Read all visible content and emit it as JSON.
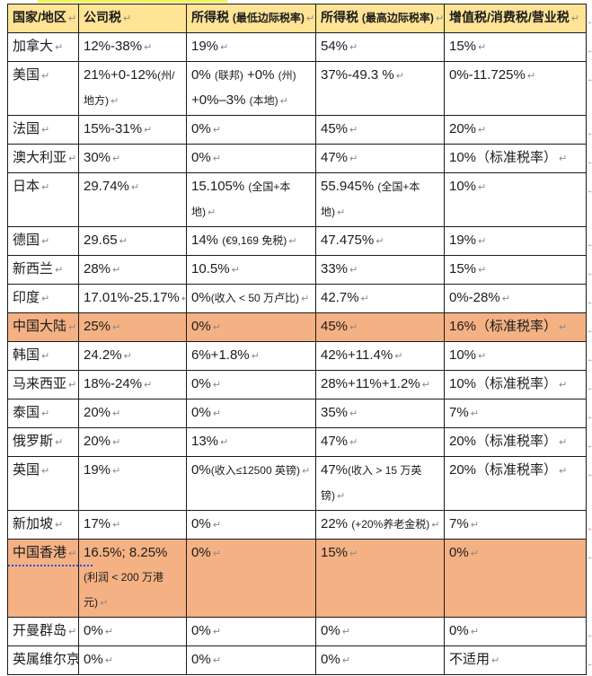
{
  "document": {
    "colors": {
      "header_bg": "#FFE496",
      "highlight_bg": "#F4B183",
      "border_color": "#1b1b1b",
      "mark_color": "#8a8a8a",
      "top_highlight": "#F5F456",
      "squiggle_blue": "#2b50d8"
    },
    "marks": {
      "cell_end": "↵",
      "row_end": "←"
    }
  },
  "table": {
    "headers": [
      "国家/地区",
      "公司税",
      "所得税 (最低边际税率)",
      "所得税 (最高边际税率)",
      "增值税/消费税/营业税"
    ],
    "rows": [
      {
        "highlight": false,
        "cells": [
          "加拿大",
          "12%-38%",
          "19%",
          "54%",
          "15%"
        ]
      },
      {
        "highlight": false,
        "cells": [
          "美国",
          "21%+0-12%(州/地方)",
          "0% (联邦) +0% (州) +0%–3% (本地)",
          "37%-49.3 %",
          "0%-11.725%"
        ]
      },
      {
        "highlight": false,
        "cells": [
          "法国",
          "15%-31%",
          "0%",
          "45%",
          "20%"
        ]
      },
      {
        "highlight": false,
        "cells": [
          "澳大利亚",
          "30%",
          "0%",
          "47%",
          "10%（标准税率）"
        ]
      },
      {
        "highlight": false,
        "cells": [
          "日本",
          "29.74%",
          "15.105% (全国+本地)",
          "55.945% (全国+本地)",
          "10%"
        ]
      },
      {
        "highlight": false,
        "cells": [
          "德国",
          "29.65",
          "14% (€9,169 免税)",
          "47.475%",
          "19%"
        ]
      },
      {
        "highlight": false,
        "cells": [
          "新西兰",
          "28%",
          "10.5%",
          "33%",
          "15%"
        ]
      },
      {
        "highlight": false,
        "cells": [
          "印度",
          "17.01%-25.17%",
          "0%(收入 < 50 万卢比)",
          "42.7%",
          "0%-28%"
        ]
      },
      {
        "highlight": true,
        "cells": [
          "中国大陆",
          "25%",
          "0%",
          "45%",
          "16%（标准税率）"
        ]
      },
      {
        "highlight": false,
        "cells": [
          "韩国",
          "24.2%",
          "6%+1.8%",
          "42%+11.4%",
          "10%"
        ]
      },
      {
        "highlight": false,
        "cells": [
          "马来西亚",
          "18%-24%",
          "0%",
          "28%+11%+1.2%",
          "10%（标准税率）"
        ]
      },
      {
        "highlight": false,
        "cells": [
          "泰国",
          "20%",
          "0%",
          "35%",
          "7%"
        ]
      },
      {
        "highlight": false,
        "cells": [
          "俄罗斯",
          "20%",
          "13%",
          "47%",
          "20%（标准税率）"
        ]
      },
      {
        "highlight": false,
        "cells": [
          "英国",
          "19%",
          "0%(收入≤12500 英镑)",
          "47%(收入 > 15 万英镑)",
          "20%（标准税率）"
        ]
      },
      {
        "highlight": false,
        "cells": [
          "新加坡",
          "17%",
          "0%",
          "22% (+20%养老金税)",
          "7%"
        ]
      },
      {
        "highlight": true,
        "cells": [
          "中国香港",
          "16.5%; 8.25% (利润 < 200 万港元)",
          "0%",
          "15%",
          "0%"
        ]
      },
      {
        "highlight": false,
        "cells": [
          "开曼群岛",
          "0%",
          "0%",
          "0%",
          "0%"
        ]
      },
      {
        "highlight": false,
        "cells": [
          "英属维尔京",
          "0%",
          "0%",
          "0%",
          "不适用"
        ]
      }
    ]
  }
}
